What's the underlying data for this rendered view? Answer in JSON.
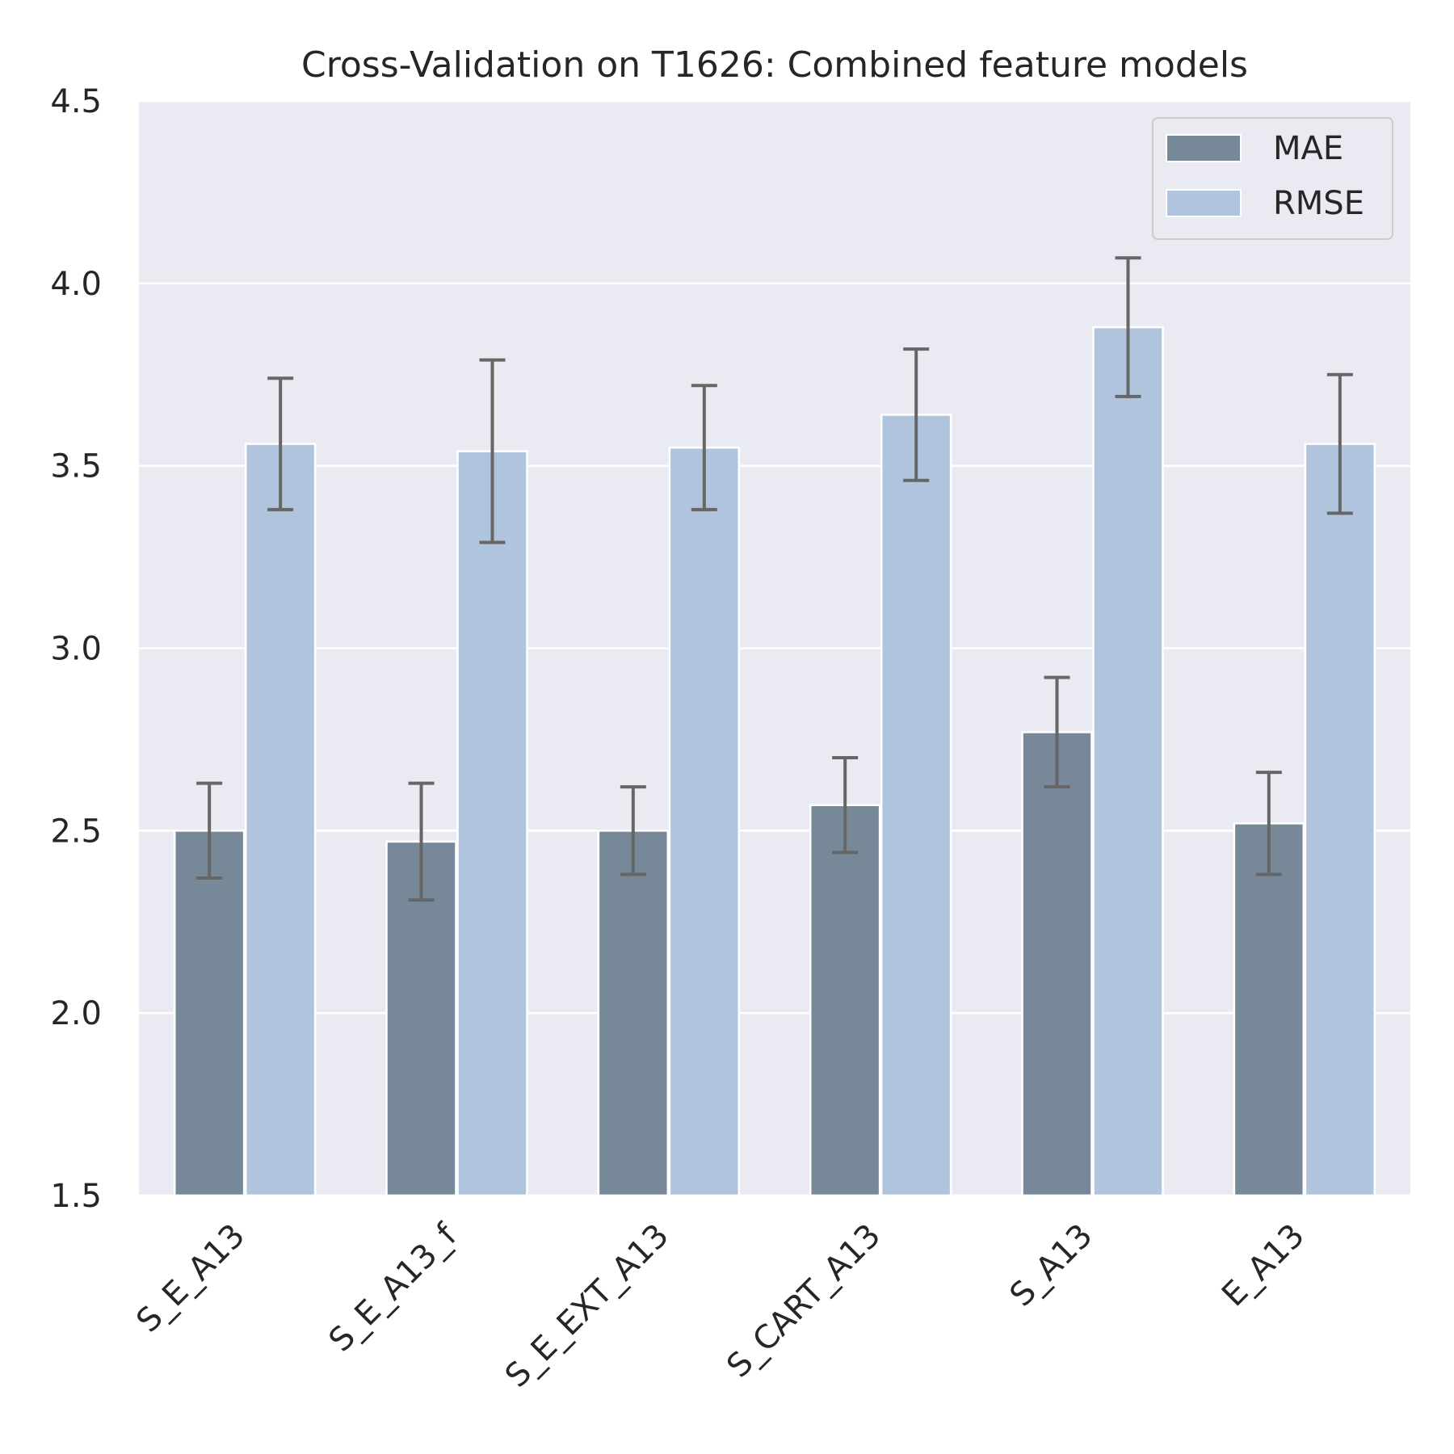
{
  "chart_data": {
    "type": "bar",
    "title": "Cross-Validation on T1626: Combined feature models",
    "xlabel": "",
    "ylabel": "",
    "ylim": [
      1.5,
      4.5
    ],
    "yticks": [
      "1.5",
      "2.0",
      "2.5",
      "3.0",
      "3.5",
      "4.0",
      "4.5"
    ],
    "categories": [
      "S_E_A13",
      "S_E_A13_f",
      "S_E_EXT_A13",
      "S_CART_A13",
      "S_A13",
      "E_A13"
    ],
    "series": [
      {
        "name": "MAE",
        "color": "#778899",
        "values": [
          2.5,
          2.47,
          2.5,
          2.57,
          2.77,
          2.52
        ],
        "errors": [
          0.13,
          0.16,
          0.12,
          0.13,
          0.15,
          0.14
        ]
      },
      {
        "name": "RMSE",
        "color": "#b0c4de",
        "values": [
          3.56,
          3.54,
          3.55,
          3.64,
          3.88,
          3.56
        ],
        "errors": [
          0.18,
          0.25,
          0.17,
          0.18,
          0.19,
          0.19
        ]
      }
    ],
    "grid": true,
    "legend_position": "top-right",
    "background": "#eaeaf2",
    "error_bar_color": "#666666"
  }
}
